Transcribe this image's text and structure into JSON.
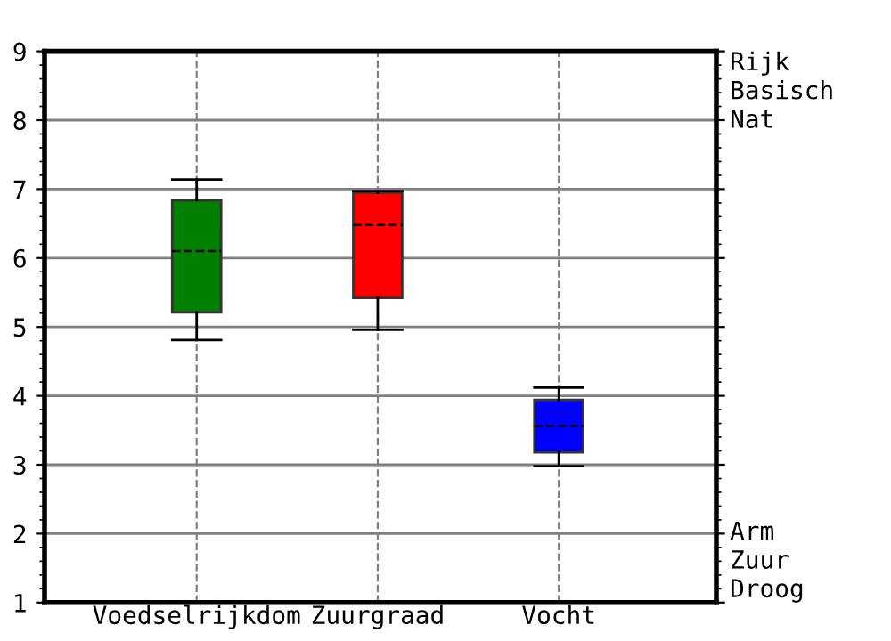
{
  "chart_data": {
    "type": "box",
    "categories": [
      "Voedselrijkdom",
      "Zuurgraad",
      "Vocht"
    ],
    "colors": [
      "#008000",
      "#ff0000",
      "#0000ff"
    ],
    "boxes": [
      {
        "low": 4.81,
        "q1": 5.21,
        "median": 6.1,
        "q3": 6.84,
        "high": 7.14
      },
      {
        "low": 4.96,
        "q1": 5.42,
        "median": 6.48,
        "q3": 6.95,
        "high": 6.97
      },
      {
        "low": 2.98,
        "q1": 3.18,
        "median": 3.56,
        "q3": 3.94,
        "high": 4.12
      }
    ],
    "ylim": [
      1,
      9
    ],
    "yticks": [
      1,
      2,
      3,
      4,
      5,
      6,
      7,
      8,
      9
    ],
    "grid": true,
    "annotations": [
      "Rijk\nBasisch\nNat",
      "Arm\nZuur\nDroog"
    ]
  }
}
